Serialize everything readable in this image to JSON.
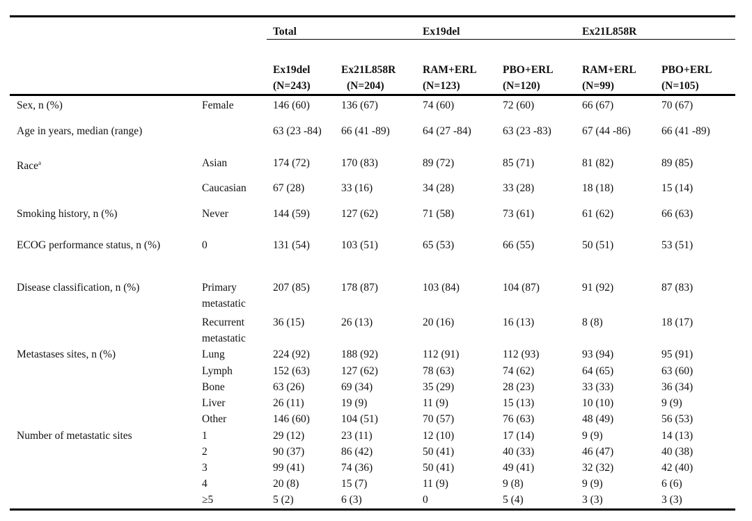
{
  "table": {
    "groups": [
      "Total",
      "Ex19del",
      "Ex21L858R"
    ],
    "columns": [
      [
        "Ex19del",
        "(N=243)"
      ],
      [
        "Ex21L858R",
        "(N=204)"
      ],
      [
        "RAM+ERL",
        "(N=123)"
      ],
      [
        "PBO+ERL",
        "(N=120)"
      ],
      [
        "RAM+ERL",
        "(N=99)"
      ],
      [
        "PBO+ERL",
        "(N=105)"
      ]
    ],
    "rows": [
      {
        "label": "Sex, n (%)",
        "sublabel": "Female",
        "cells": [
          "146 (60)",
          "136 (67)",
          "74 (60)",
          "72 (60)",
          "66 (67)",
          "70 (67)"
        ]
      },
      {
        "label": "Age in years, median (range)",
        "cells": [
          "63 (23 -84)",
          "66 (41 -89)",
          "64 (27 -84)",
          "63 (23 -83)",
          "67 (44 -86)",
          "66 (41 -89)"
        ]
      },
      {
        "label": "Race",
        "note": "a",
        "sublabel": "Asian",
        "cells": [
          "174 (72)",
          "170 (83)",
          "89 (72)",
          "85 (71)",
          "81 (82)",
          "89 (85)"
        ]
      },
      {
        "sublabel": "Caucasian",
        "cells": [
          "67 (28)",
          "33 (16)",
          "34 (28)",
          "33 (28)",
          "18 (18)",
          "15 (14)"
        ]
      },
      {
        "label": "Smoking history, n (%)",
        "sublabel": "Never",
        "cells": [
          "144 (59)",
          "127 (62)",
          "71 (58)",
          "73 (61)",
          "61 (62)",
          "66 (63)"
        ]
      },
      {
        "label": "ECOG performance status, n (%)",
        "sublabel": "0",
        "cells": [
          "131 (54)",
          "103 (51)",
          "65 (53)",
          "66 (55)",
          "50 (51)",
          "53 (51)"
        ]
      },
      {
        "label": "Disease classification, n (%)",
        "sublabel": "Primary metastatic",
        "cells": [
          "207 (85)",
          "178 (87)",
          "103 (84)",
          "104 (87)",
          "91 (92)",
          "87 (83)"
        ]
      },
      {
        "sublabel": "Recurrent metastatic",
        "cells": [
          "36 (15)",
          "26 (13)",
          "20 (16)",
          "16 (13)",
          "8 (8)",
          "18 (17)"
        ]
      },
      {
        "label": "Metastases sites, n (%)",
        "sublabel": "Lung",
        "cells": [
          "224 (92)",
          "188 (92)",
          "112 (91)",
          "112 (93)",
          "93 (94)",
          "95 (91)"
        ]
      },
      {
        "sublabel": "Lymph",
        "cells": [
          "152 (63)",
          "127 (62)",
          "78 (63)",
          "74 (62)",
          "64 (65)",
          "63 (60)"
        ]
      },
      {
        "sublabel": "Bone",
        "cells": [
          "63 (26)",
          "69 (34)",
          "35 (29)",
          "28 (23)",
          "33 (33)",
          "36 (34)"
        ]
      },
      {
        "sublabel": "Liver",
        "cells": [
          "26 (11)",
          "19 (9)",
          "11 (9)",
          "15 (13)",
          "10 (10)",
          "9 (9)"
        ]
      },
      {
        "sublabel": "Other",
        "cells": [
          "146 (60)",
          "104 (51)",
          "70 (57)",
          "76 (63)",
          "48 (49)",
          "56 (53)"
        ]
      },
      {
        "label": "Number of metastatic sites",
        "sublabel": "1",
        "cells": [
          "29 (12)",
          "23 (11)",
          "12 (10)",
          "17 (14)",
          "9 (9)",
          "14 (13)"
        ]
      },
      {
        "sublabel": "2",
        "cells": [
          "90 (37)",
          "86 (42)",
          "50 (41)",
          "40 (33)",
          "46 (47)",
          "40 (38)"
        ]
      },
      {
        "sublabel": "3",
        "cells": [
          "99 (41)",
          "74 (36)",
          "50 (41)",
          "49 (41)",
          "32 (32)",
          "42 (40)"
        ]
      },
      {
        "sublabel": "4",
        "cells": [
          "20 (8)",
          "15 (7)",
          "11 (9)",
          "9 (8)",
          "9 (9)",
          "6 (6)"
        ]
      },
      {
        "sublabel": "≥5",
        "cells": [
          "5 (2)",
          "6 (3)",
          "0",
          "5 (4)",
          "3 (3)",
          "3 (3)"
        ]
      }
    ]
  }
}
